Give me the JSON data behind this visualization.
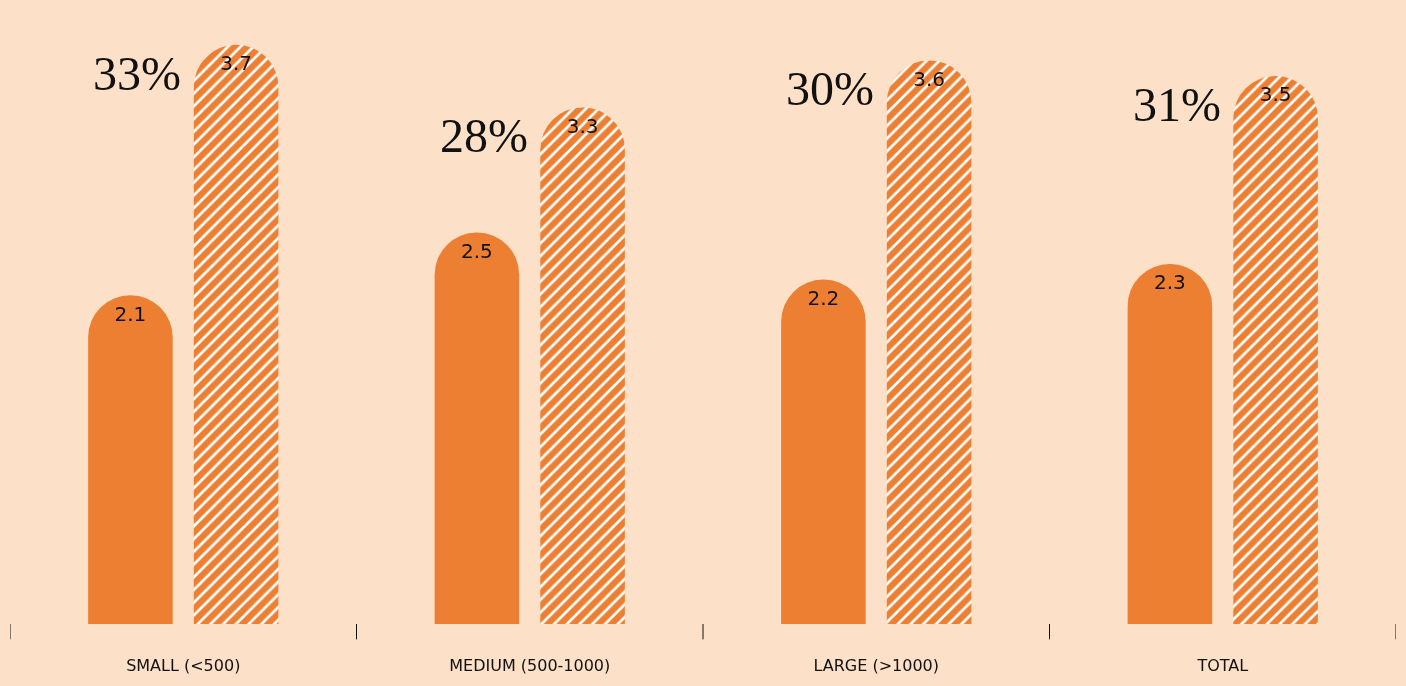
{
  "chart_data": {
    "type": "bar",
    "categories": [
      "SMALL (<500)",
      "MEDIUM (500-1000)",
      "LARGE (>1000)",
      "TOTAL"
    ],
    "series": [
      {
        "color": "#ed7f33",
        "values": [
          2.1,
          2.5,
          2.2,
          2.3
        ]
      },
      {
        "color": "#ed7f33",
        "values": [
          3.7,
          3.3,
          3.6,
          3.5
        ]
      }
    ],
    "data_labels": true,
    "annotations": [
      "33%",
      "28%",
      "30%",
      "31%"
    ],
    "tick_labels": "x",
    "grid": false
  }
}
